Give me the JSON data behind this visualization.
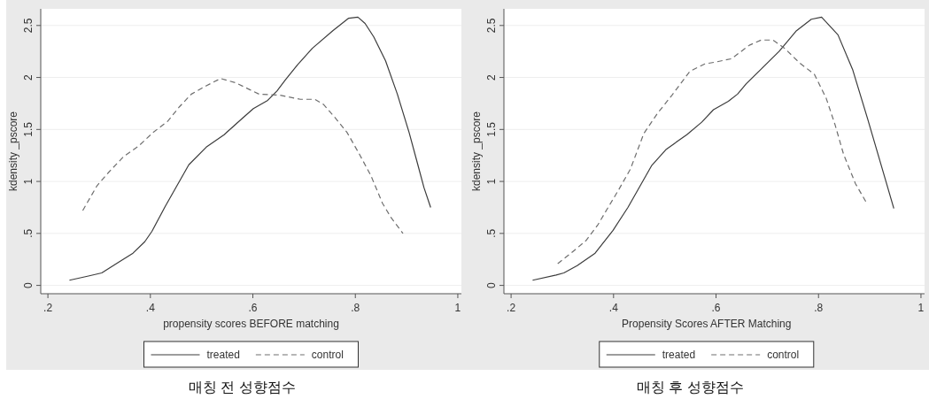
{
  "chart_data": [
    {
      "type": "line",
      "title": "매칭 전 성향점수",
      "xlabel": "propensity scores BEFORE matching",
      "ylabel": "kdensity _pscore",
      "xlim": [
        0.186,
        1.007
      ],
      "ylim": [
        -0.08,
        2.66
      ],
      "xticks": [
        {
          "value": 0.2,
          "label": ".2"
        },
        {
          "value": 0.4,
          "label": ".4"
        },
        {
          "value": 0.6,
          "label": ".6"
        },
        {
          "value": 0.8,
          "label": ".8"
        },
        1
      ],
      "yticks": [
        0,
        {
          "value": 0.5,
          "label": ".5"
        },
        1,
        1.5,
        2,
        2.5
      ],
      "grid": "y",
      "legend": "bottom",
      "series": [
        {
          "name": "treated",
          "color": "#3c3c3c",
          "line_style": "solid",
          "x": [
            0.242,
            0.279,
            0.305,
            0.337,
            0.366,
            0.389,
            0.403,
            0.429,
            0.452,
            0.475,
            0.509,
            0.544,
            0.578,
            0.601,
            0.629,
            0.647,
            0.664,
            0.687,
            0.716,
            0.756,
            0.787,
            0.805,
            0.819,
            0.836,
            0.859,
            0.882,
            0.905,
            0.922,
            0.934,
            0.947
          ],
          "values": [
            0.05,
            0.09,
            0.12,
            0.22,
            0.31,
            0.42,
            0.52,
            0.76,
            0.96,
            1.16,
            1.33,
            1.45,
            1.6,
            1.7,
            1.78,
            1.87,
            1.98,
            2.12,
            2.28,
            2.45,
            2.57,
            2.58,
            2.52,
            2.39,
            2.16,
            1.84,
            1.47,
            1.16,
            0.94,
            0.75
          ]
        },
        {
          "name": "control",
          "color": "#6e6e6e",
          "line_style": "dashed",
          "x": [
            0.268,
            0.296,
            0.319,
            0.348,
            0.377,
            0.405,
            0.434,
            0.457,
            0.48,
            0.509,
            0.537,
            0.566,
            0.595,
            0.612,
            0.652,
            0.693,
            0.721,
            0.738,
            0.761,
            0.784,
            0.807,
            0.83,
            0.853,
            0.87,
            0.893
          ],
          "values": [
            0.72,
            0.96,
            1.09,
            1.24,
            1.34,
            1.47,
            1.58,
            1.72,
            1.84,
            1.92,
            1.99,
            1.95,
            1.88,
            1.84,
            1.83,
            1.79,
            1.79,
            1.74,
            1.61,
            1.47,
            1.27,
            1.06,
            0.79,
            0.65,
            0.5
          ]
        }
      ]
    },
    {
      "type": "line",
      "title": "매칭 후 성향점수",
      "xlabel": "Propensity Scores AFTER Matching",
      "ylabel": "kdensity _pscore",
      "xlim": [
        0.186,
        1.007
      ],
      "ylim": [
        -0.08,
        2.66
      ],
      "xticks": [
        {
          "value": 0.2,
          "label": ".2"
        },
        {
          "value": 0.4,
          "label": ".4"
        },
        {
          "value": 0.6,
          "label": ".6"
        },
        {
          "value": 0.8,
          "label": ".8"
        },
        1
      ],
      "yticks": [
        0,
        {
          "value": 0.5,
          "label": ".5"
        },
        1,
        1.5,
        2,
        2.5
      ],
      "grid": "y",
      "legend": "bottom",
      "series": [
        {
          "name": "treated",
          "color": "#3c3c3c",
          "line_style": "solid",
          "x": [
            0.242,
            0.288,
            0.303,
            0.329,
            0.364,
            0.399,
            0.428,
            0.451,
            0.474,
            0.503,
            0.543,
            0.572,
            0.595,
            0.624,
            0.642,
            0.659,
            0.688,
            0.723,
            0.757,
            0.786,
            0.806,
            0.838,
            0.867,
            0.896,
            0.931,
            0.947
          ],
          "values": [
            0.05,
            0.1,
            0.12,
            0.19,
            0.31,
            0.53,
            0.75,
            0.95,
            1.15,
            1.31,
            1.45,
            1.57,
            1.69,
            1.77,
            1.84,
            1.94,
            2.08,
            2.25,
            2.45,
            2.56,
            2.58,
            2.41,
            2.07,
            1.6,
            1.01,
            0.74
          ]
        },
        {
          "name": "control",
          "color": "#6e6e6e",
          "line_style": "dashed",
          "x": [
            0.291,
            0.317,
            0.346,
            0.369,
            0.387,
            0.41,
            0.433,
            0.459,
            0.485,
            0.514,
            0.549,
            0.578,
            0.601,
            0.63,
            0.665,
            0.688,
            0.711,
            0.734,
            0.763,
            0.792,
            0.815,
            0.832,
            0.849,
            0.872,
            0.893
          ],
          "values": [
            0.21,
            0.31,
            0.43,
            0.58,
            0.73,
            0.92,
            1.12,
            1.46,
            1.65,
            1.83,
            2.06,
            2.13,
            2.15,
            2.18,
            2.31,
            2.36,
            2.36,
            2.28,
            2.14,
            2.03,
            1.8,
            1.55,
            1.26,
            0.98,
            0.8
          ]
        }
      ]
    }
  ]
}
